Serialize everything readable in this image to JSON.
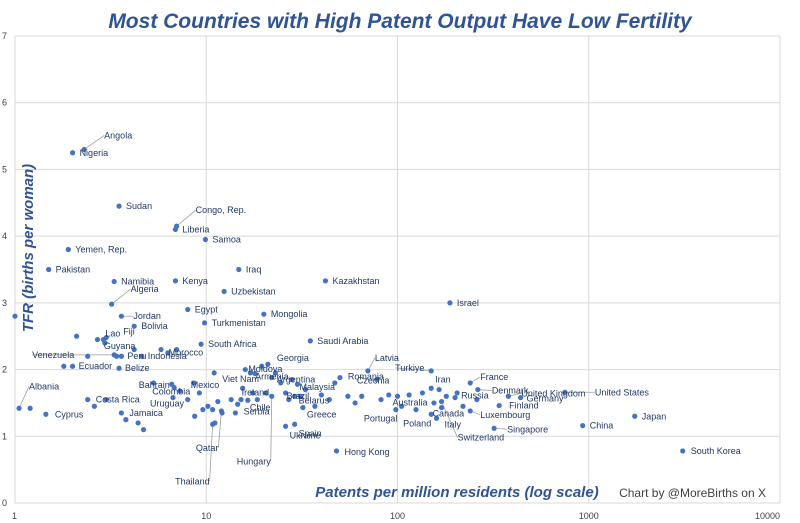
{
  "chart_data": {
    "type": "scatter",
    "title": "Most Countries with High Patent Output Have Low Fertility",
    "xlabel": "Patents per million residents (log scale)",
    "ylabel": "TFR (births per woman)",
    "credit": "Chart by @MoreBirths on X",
    "x_scale": "log",
    "xlim": [
      1,
      10000
    ],
    "ylim": [
      0,
      7
    ],
    "x_ticks": [
      1,
      10,
      100,
      1000,
      10000
    ],
    "x_tick_labels": [
      "1",
      "10",
      "100",
      "1000",
      "10000"
    ],
    "y_ticks": [
      0,
      1,
      2,
      3,
      4,
      5,
      6,
      7
    ],
    "y_tick_labels": [
      "0",
      "1",
      "2",
      "3",
      "4",
      "5",
      "6",
      "7"
    ],
    "grid": true,
    "color": "#4472c4",
    "labeled_points": [
      {
        "name": "Angola",
        "x": 2.3,
        "y": 5.3
      },
      {
        "name": "Nigeria",
        "x": 2.0,
        "y": 5.25
      },
      {
        "name": "Sudan",
        "x": 3.5,
        "y": 4.45
      },
      {
        "name": "Congo, Rep.",
        "x": 7.0,
        "y": 4.15
      },
      {
        "name": "Liberia",
        "x": 6.9,
        "y": 4.1
      },
      {
        "name": "Samoa",
        "x": 9.9,
        "y": 3.95
      },
      {
        "name": "Yemen, Rep.",
        "x": 1.9,
        "y": 3.8
      },
      {
        "name": "Pakistan",
        "x": 1.5,
        "y": 3.5
      },
      {
        "name": "Iraq",
        "x": 14.8,
        "y": 3.5
      },
      {
        "name": "Namibia",
        "x": 3.3,
        "y": 3.32
      },
      {
        "name": "Kenya",
        "x": 6.9,
        "y": 3.33
      },
      {
        "name": "Kazakhstan",
        "x": 42,
        "y": 3.33
      },
      {
        "name": "Uzbekistan",
        "x": 12.4,
        "y": 3.17
      },
      {
        "name": "Algeria",
        "x": 3.2,
        "y": 2.98
      },
      {
        "name": "Israel",
        "x": 188,
        "y": 3.0
      },
      {
        "name": "Egypt",
        "x": 8.0,
        "y": 2.9
      },
      {
        "name": "Jordan",
        "x": 3.6,
        "y": 2.8
      },
      {
        "name": "Mongolia",
        "x": 20,
        "y": 2.83
      },
      {
        "name": "Bolivia",
        "x": 4.2,
        "y": 2.65
      },
      {
        "name": "Turkmenistan",
        "x": 9.8,
        "y": 2.7
      },
      {
        "name": "Lao",
        "x": 2.9,
        "y": 2.45
      },
      {
        "name": "Fiji",
        "x": 3.0,
        "y": 2.48
      },
      {
        "name": "Guyana",
        "x": 2.95,
        "y": 2.4
      },
      {
        "name": "South Africa",
        "x": 9.4,
        "y": 2.38
      },
      {
        "name": "Saudi Arabia",
        "x": 35,
        "y": 2.43
      },
      {
        "name": "Morocco",
        "x": 7.0,
        "y": 2.3
      },
      {
        "name": "Venezuela",
        "x": 3.3,
        "y": 2.22
      },
      {
        "name": "Peru",
        "x": 3.6,
        "y": 2.2
      },
      {
        "name": "Indonesia",
        "x": 4.6,
        "y": 2.2
      },
      {
        "name": "Ecuador",
        "x": 2.0,
        "y": 2.05
      },
      {
        "name": "Belize",
        "x": 3.5,
        "y": 2.02
      },
      {
        "name": "Georgia",
        "x": 21,
        "y": 2.08
      },
      {
        "name": "Latvia",
        "x": 70,
        "y": 1.98
      },
      {
        "name": "Viet Nam",
        "x": 11,
        "y": 1.95
      },
      {
        "name": "Moldova",
        "x": 17,
        "y": 1.95
      },
      {
        "name": "Armenia",
        "x": 18,
        "y": 1.94
      },
      {
        "name": "Turkiye",
        "x": 150,
        "y": 1.98
      },
      {
        "name": "Argentina",
        "x": 22,
        "y": 1.88
      },
      {
        "name": "Romania",
        "x": 50,
        "y": 1.88
      },
      {
        "name": "Czechia",
        "x": 78,
        "y": 1.85
      },
      {
        "name": "Iran",
        "x": 150,
        "y": 1.72
      },
      {
        "name": "France",
        "x": 240,
        "y": 1.8
      },
      {
        "name": "United Kingdom",
        "x": 380,
        "y": 1.6
      },
      {
        "name": "Malaysia",
        "x": 30,
        "y": 1.78
      },
      {
        "name": "Bahrain",
        "x": 6.6,
        "y": 1.78
      },
      {
        "name": "Mexico",
        "x": 8.6,
        "y": 1.8
      },
      {
        "name": "Colombia",
        "x": 6.8,
        "y": 1.73
      },
      {
        "name": "Ireland",
        "x": 15.5,
        "y": 1.72
      },
      {
        "name": "Denmark",
        "x": 263,
        "y": 1.7
      },
      {
        "name": "Brazil",
        "x": 26,
        "y": 1.65
      },
      {
        "name": "United States",
        "x": 750,
        "y": 1.66
      },
      {
        "name": "Russia",
        "x": 200,
        "y": 1.58
      },
      {
        "name": "Uruguay",
        "x": 6.7,
        "y": 1.58
      },
      {
        "name": "Germany",
        "x": 440,
        "y": 1.58
      },
      {
        "name": "Chile",
        "x": 16.5,
        "y": 1.54
      },
      {
        "name": "Belarus",
        "x": 29,
        "y": 1.6
      },
      {
        "name": "Finland",
        "x": 340,
        "y": 1.46
      },
      {
        "name": "Australia",
        "x": 100,
        "y": 1.6
      },
      {
        "name": "Canada",
        "x": 170,
        "y": 1.43
      },
      {
        "name": "Greece",
        "x": 32,
        "y": 1.43
      },
      {
        "name": "Luxembourg",
        "x": 240,
        "y": 1.38
      },
      {
        "name": "Serbia",
        "x": 14.6,
        "y": 1.48
      },
      {
        "name": "Portugal",
        "x": 98,
        "y": 1.4
      },
      {
        "name": "Italy",
        "x": 160,
        "y": 1.27
      },
      {
        "name": "Poland",
        "x": 150,
        "y": 1.33
      },
      {
        "name": "Japan",
        "x": 1740,
        "y": 1.3
      },
      {
        "name": "Singapore",
        "x": 320,
        "y": 1.12
      },
      {
        "name": "China",
        "x": 930,
        "y": 1.16
      },
      {
        "name": "Spain",
        "x": 29,
        "y": 1.18
      },
      {
        "name": "Qatar",
        "x": 12,
        "y": 1.38
      },
      {
        "name": "Switzerland",
        "x": 170,
        "y": 1.52
      },
      {
        "name": "Ukraine",
        "x": 26,
        "y": 1.15
      },
      {
        "name": "Hong Kong",
        "x": 48,
        "y": 0.78
      },
      {
        "name": "Hungary",
        "x": 22,
        "y": 1.6
      },
      {
        "name": "Thailand",
        "x": 10.8,
        "y": 1.18
      },
      {
        "name": "Albania",
        "x": 1.05,
        "y": 1.42
      },
      {
        "name": "Cyprus",
        "x": 1.45,
        "y": 1.33
      },
      {
        "name": "Costa Rica",
        "x": 2.4,
        "y": 1.55
      },
      {
        "name": "Jamaica",
        "x": 3.6,
        "y": 1.35
      },
      {
        "name": "South Korea",
        "x": 3100,
        "y": 0.78
      }
    ],
    "unlabeled_points": [
      {
        "x": 1.0,
        "y": 2.8
      },
      {
        "x": 1.2,
        "y": 1.42
      },
      {
        "x": 1.8,
        "y": 2.05
      },
      {
        "x": 2.1,
        "y": 2.5
      },
      {
        "x": 2.4,
        "y": 2.2
      },
      {
        "x": 2.6,
        "y": 1.45
      },
      {
        "x": 2.7,
        "y": 2.45
      },
      {
        "x": 3.0,
        "y": 1.55
      },
      {
        "x": 3.4,
        "y": 2.2
      },
      {
        "x": 3.8,
        "y": 1.25
      },
      {
        "x": 4.2,
        "y": 2.3
      },
      {
        "x": 4.4,
        "y": 1.2
      },
      {
        "x": 4.7,
        "y": 1.1
      },
      {
        "x": 5.3,
        "y": 1.8
      },
      {
        "x": 5.8,
        "y": 2.3
      },
      {
        "x": 6.3,
        "y": 2.25
      },
      {
        "x": 7.3,
        "y": 1.68
      },
      {
        "x": 8.0,
        "y": 1.55
      },
      {
        "x": 8.7,
        "y": 1.3
      },
      {
        "x": 9.2,
        "y": 1.65
      },
      {
        "x": 9.6,
        "y": 1.4
      },
      {
        "x": 10.2,
        "y": 1.45
      },
      {
        "x": 10.8,
        "y": 1.4
      },
      {
        "x": 11.1,
        "y": 1.2
      },
      {
        "x": 11.5,
        "y": 1.52
      },
      {
        "x": 12.1,
        "y": 1.35
      },
      {
        "x": 13.5,
        "y": 1.55
      },
      {
        "x": 14.2,
        "y": 1.35
      },
      {
        "x": 15.2,
        "y": 1.55
      },
      {
        "x": 16.0,
        "y": 2.0
      },
      {
        "x": 17.5,
        "y": 1.65
      },
      {
        "x": 18.5,
        "y": 1.55
      },
      {
        "x": 19.5,
        "y": 2.05
      },
      {
        "x": 20.5,
        "y": 1.65
      },
      {
        "x": 23.0,
        "y": 1.95
      },
      {
        "x": 24.5,
        "y": 1.8
      },
      {
        "x": 27.0,
        "y": 1.55
      },
      {
        "x": 28.0,
        "y": 1.85
      },
      {
        "x": 31.0,
        "y": 1.6
      },
      {
        "x": 33.0,
        "y": 1.7
      },
      {
        "x": 37.0,
        "y": 1.45
      },
      {
        "x": 40.0,
        "y": 1.62
      },
      {
        "x": 44.0,
        "y": 1.55
      },
      {
        "x": 47.0,
        "y": 1.8
      },
      {
        "x": 55.0,
        "y": 1.6
      },
      {
        "x": 60.0,
        "y": 1.5
      },
      {
        "x": 65.0,
        "y": 1.6
      },
      {
        "x": 82.0,
        "y": 1.55
      },
      {
        "x": 90.0,
        "y": 1.62
      },
      {
        "x": 105.0,
        "y": 1.45
      },
      {
        "x": 115.0,
        "y": 1.62
      },
      {
        "x": 125.0,
        "y": 1.4
      },
      {
        "x": 135.0,
        "y": 1.65
      },
      {
        "x": 155.0,
        "y": 1.5
      },
      {
        "x": 165.0,
        "y": 1.7
      },
      {
        "x": 180.0,
        "y": 1.6
      },
      {
        "x": 205.0,
        "y": 1.65
      },
      {
        "x": 220.0,
        "y": 1.45
      },
      {
        "x": 260.0,
        "y": 1.55
      }
    ]
  }
}
